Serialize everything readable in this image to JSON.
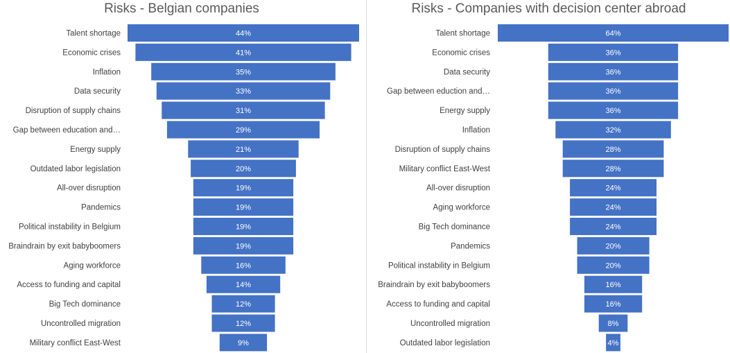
{
  "chart_data": [
    {
      "type": "bar",
      "orientation": "horizontal-funnel",
      "title": "Risks - Belgian companies",
      "categories": [
        "Talent shortage",
        "Economic crises",
        "Inflation",
        "Data security",
        "Disruption of supply chains",
        "Gap between education and…",
        "Energy supply",
        "Outdated labor legislation",
        "All-over disruption",
        "Pandemics",
        "Political instability in Belgium",
        "Braindrain by exit babyboomers",
        "Aging workforce",
        "Access to funding and capital",
        "Big Tech dominance",
        "Uncontrolled migration",
        "Military conflict East-West"
      ],
      "values": [
        44,
        41,
        35,
        33,
        31,
        29,
        21,
        20,
        19,
        19,
        19,
        19,
        16,
        14,
        12,
        12,
        9
      ],
      "value_labels": [
        "44%",
        "41%",
        "35%",
        "33%",
        "31%",
        "29%",
        "21%",
        "20%",
        "19%",
        "19%",
        "19%",
        "19%",
        "16%",
        "14%",
        "12%",
        "12%",
        "9%"
      ],
      "max": 44,
      "xlabel": "",
      "ylabel": ""
    },
    {
      "type": "bar",
      "orientation": "horizontal-funnel",
      "title": "Risks - Companies with decision center abroad",
      "categories": [
        "Talent shortage",
        "Economic crises",
        "Data security",
        "Gap between eduction and…",
        "Energy supply",
        "Inflation",
        "Disruption of supply chains",
        "Military conflict East-West",
        "All-over disruption",
        "Aging workforce",
        "Big Tech dominance",
        "Pandemics",
        "Political instability in Belgium",
        "Braindrain by exit babyboomers",
        "Access to funding and capital",
        "Uncontrolled migration",
        "Outdated labor legislation"
      ],
      "values": [
        64,
        36,
        36,
        36,
        36,
        32,
        28,
        28,
        24,
        24,
        24,
        20,
        20,
        16,
        16,
        8,
        4
      ],
      "value_labels": [
        "64%",
        "36%",
        "36%",
        "36%",
        "36%",
        "32%",
        "28%",
        "28%",
        "24%",
        "24%",
        "24%",
        "20%",
        "20%",
        "16%",
        "16%",
        "8%",
        "4%"
      ],
      "max": 64,
      "xlabel": "",
      "ylabel": ""
    }
  ],
  "colors": {
    "bar": "#4472c4",
    "value_text": "#ffffff",
    "label_text": "#404040",
    "title_text": "#595959"
  }
}
